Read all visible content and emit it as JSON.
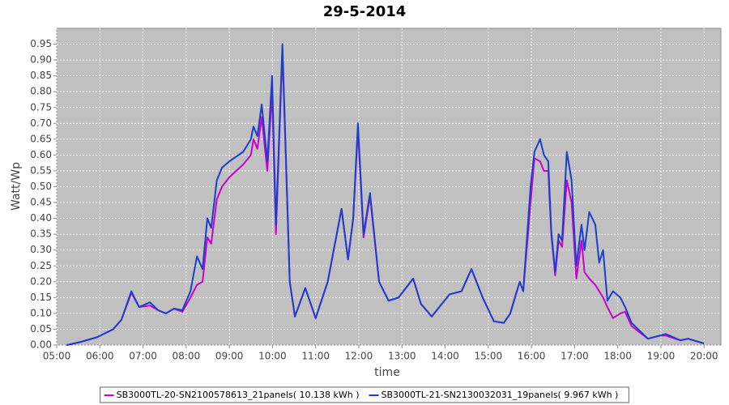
{
  "chart_data": {
    "type": "line",
    "title": "29-5-2014",
    "x_label": "time",
    "y_label": "Watt/Wp",
    "x": [
      5.23,
      5.56,
      5.94,
      6.31,
      6.5,
      6.73,
      6.91,
      7.16,
      7.35,
      7.53,
      7.72,
      7.91,
      8.1,
      8.25,
      8.38,
      8.49,
      8.58,
      8.71,
      8.83,
      9.0,
      9.32,
      9.5,
      9.56,
      9.65,
      9.75,
      9.88,
      9.99,
      10.08,
      10.23,
      10.4,
      10.52,
      10.76,
      11.0,
      11.28,
      11.6,
      11.75,
      11.87,
      11.98,
      12.11,
      12.26,
      12.47,
      12.69,
      12.92,
      13.26,
      13.44,
      13.69,
      14.1,
      14.38,
      14.61,
      14.87,
      15.13,
      15.36,
      15.51,
      15.64,
      15.73,
      15.81,
      15.98,
      16.07,
      16.2,
      16.29,
      16.39,
      16.46,
      16.55,
      16.63,
      16.71,
      16.82,
      16.93,
      17.04,
      17.16,
      17.23,
      17.34,
      17.48,
      17.57,
      17.66,
      17.76,
      17.89,
      18.06,
      18.17,
      18.32,
      18.7,
      18.98,
      19.11,
      19.45,
      19.63,
      20.0
    ],
    "series": [
      {
        "name": "SB3000TL-20-SN2100578613_21panels( 10.138 kWh )",
        "color": "#cc00cc",
        "values": [
          0,
          0.01,
          0.025,
          0.05,
          0.08,
          0.165,
          0.12,
          0.125,
          0.11,
          0.1,
          0.115,
          0.105,
          0.15,
          0.19,
          0.2,
          0.34,
          0.32,
          0.46,
          0.5,
          0.53,
          0.57,
          0.6,
          0.65,
          0.62,
          0.72,
          0.55,
          0.8,
          0.35,
          0.93,
          0.2,
          0.09,
          0.18,
          0.085,
          0.2,
          0.43,
          0.27,
          0.4,
          0.68,
          0.34,
          0.47,
          0.2,
          0.14,
          0.15,
          0.21,
          0.13,
          0.09,
          0.16,
          0.17,
          0.24,
          0.15,
          0.075,
          0.07,
          0.1,
          0.16,
          0.2,
          0.17,
          0.45,
          0.59,
          0.58,
          0.55,
          0.55,
          0.35,
          0.22,
          0.33,
          0.31,
          0.52,
          0.45,
          0.21,
          0.33,
          0.23,
          0.21,
          0.19,
          0.17,
          0.15,
          0.12,
          0.085,
          0.1,
          0.105,
          0.06,
          0.02,
          0.03,
          0.03,
          0.015,
          0.02,
          0.005
        ]
      },
      {
        "name": "SB3000TL-21-SN2130032031_19panels( 9.967 kWh )",
        "color": "#1a3fcc",
        "values": [
          0,
          0.01,
          0.025,
          0.05,
          0.08,
          0.17,
          0.12,
          0.135,
          0.11,
          0.1,
          0.115,
          0.11,
          0.17,
          0.28,
          0.24,
          0.4,
          0.37,
          0.52,
          0.56,
          0.58,
          0.61,
          0.65,
          0.69,
          0.66,
          0.76,
          0.58,
          0.85,
          0.38,
          0.95,
          0.2,
          0.09,
          0.18,
          0.085,
          0.2,
          0.43,
          0.27,
          0.4,
          0.7,
          0.35,
          0.48,
          0.2,
          0.14,
          0.15,
          0.21,
          0.13,
          0.09,
          0.16,
          0.17,
          0.24,
          0.15,
          0.075,
          0.07,
          0.1,
          0.16,
          0.2,
          0.17,
          0.5,
          0.61,
          0.65,
          0.6,
          0.58,
          0.36,
          0.23,
          0.35,
          0.33,
          0.61,
          0.52,
          0.25,
          0.38,
          0.3,
          0.42,
          0.38,
          0.26,
          0.3,
          0.14,
          0.17,
          0.15,
          0.12,
          0.07,
          0.02,
          0.03,
          0.035,
          0.015,
          0.02,
          0.005
        ]
      }
    ],
    "xlim": [
      5,
      20.39
    ],
    "ylim": [
      0,
      1.0
    ],
    "xticks": [
      {
        "value": 5,
        "label": "05:00"
      },
      {
        "value": 6,
        "label": "06:00"
      },
      {
        "value": 7,
        "label": "07:00"
      },
      {
        "value": 8,
        "label": "08:00"
      },
      {
        "value": 9,
        "label": "09:00"
      },
      {
        "value": 10,
        "label": "10:00"
      },
      {
        "value": 11,
        "label": "11:00"
      },
      {
        "value": 12,
        "label": "12:00"
      },
      {
        "value": 13,
        "label": "13:00"
      },
      {
        "value": 14,
        "label": "14:00"
      },
      {
        "value": 15,
        "label": "15:00"
      },
      {
        "value": 16,
        "label": "16:00"
      },
      {
        "value": 17,
        "label": "17:00"
      },
      {
        "value": 18,
        "label": "18:00"
      },
      {
        "value": 19,
        "label": "19:00"
      },
      {
        "value": 20,
        "label": "20:00"
      }
    ],
    "yticks": [
      {
        "value": 0,
        "label": "0.00"
      },
      {
        "value": 0.05,
        "label": "0.05"
      },
      {
        "value": 0.1,
        "label": "0.10"
      },
      {
        "value": 0.15,
        "label": "0.15"
      },
      {
        "value": 0.2,
        "label": "0.20"
      },
      {
        "value": 0.25,
        "label": "0.25"
      },
      {
        "value": 0.3,
        "label": "0.30"
      },
      {
        "value": 0.35,
        "label": "0.35"
      },
      {
        "value": 0.4,
        "label": "0.40"
      },
      {
        "value": 0.45,
        "label": "0.45"
      },
      {
        "value": 0.5,
        "label": "0.50"
      },
      {
        "value": 0.55,
        "label": "0.55"
      },
      {
        "value": 0.6,
        "label": "0.60"
      },
      {
        "value": 0.65,
        "label": "0.65"
      },
      {
        "value": 0.7,
        "label": "0.70"
      },
      {
        "value": 0.75,
        "label": "0.75"
      },
      {
        "value": 0.8,
        "label": "0.80"
      },
      {
        "value": 0.85,
        "label": "0.85"
      },
      {
        "value": 0.9,
        "label": "0.90"
      },
      {
        "value": 0.95,
        "label": "0.95"
      }
    ],
    "grid": true,
    "legend": "bottom"
  }
}
